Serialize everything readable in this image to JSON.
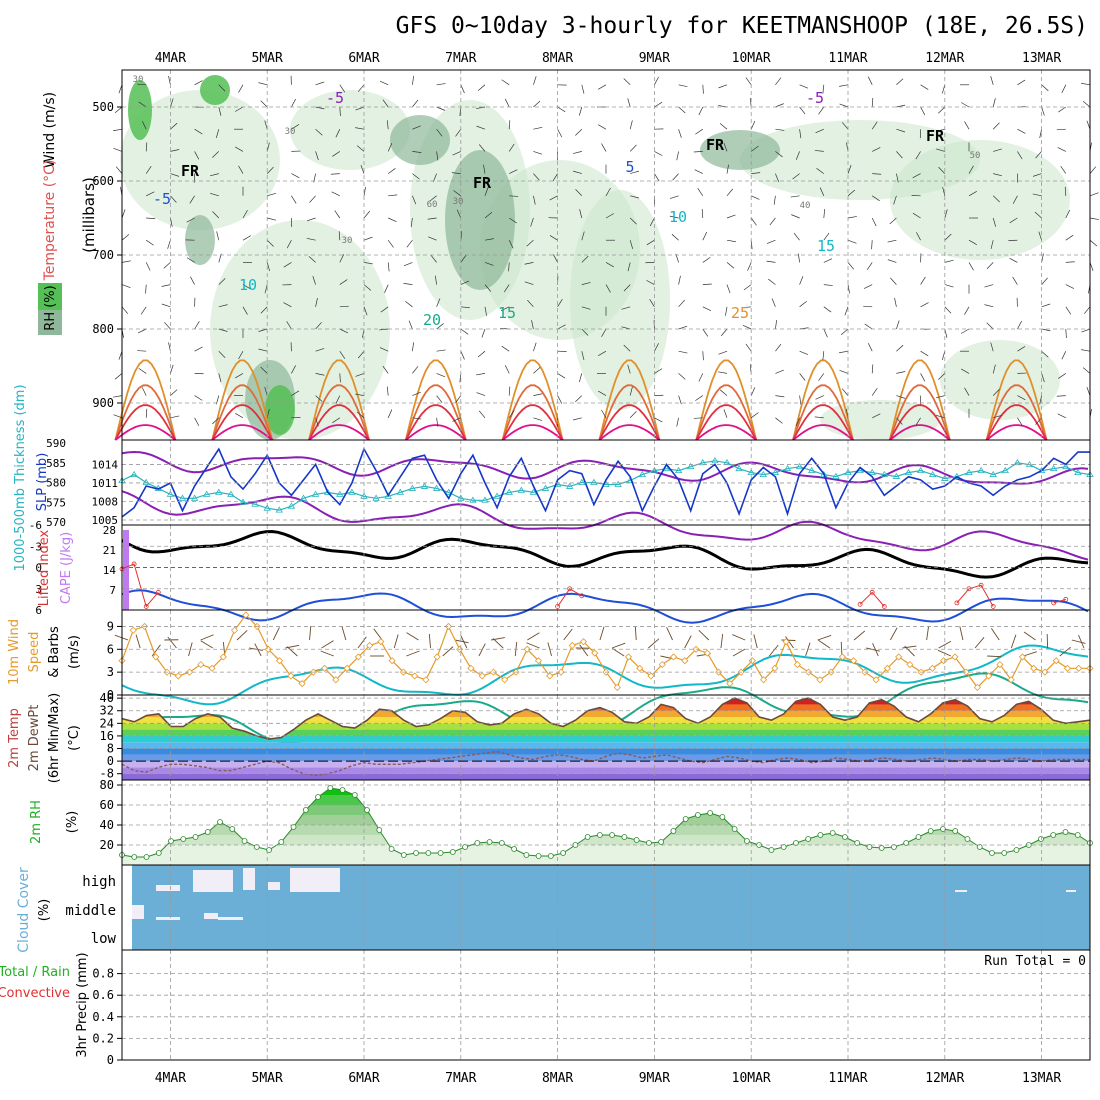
{
  "title": "GFS 0~10day 3-hourly for KEETMANSHOOP (18E, 26.5S)",
  "dates": [
    "4MAR",
    "5MAR",
    "6MAR",
    "7MAR",
    "8MAR",
    "9MAR",
    "10MAR",
    "11MAR",
    "12MAR",
    "13MAR"
  ],
  "colors": {
    "grid": "#9a9a9a",
    "purple": "#8a1fb6",
    "blue_dark": "#1f4fd6",
    "cyan": "#10b8c8",
    "teal": "#1aaa8a",
    "orange": "#e0902a",
    "red": "#e03040",
    "magenta": "#e0108a",
    "green_dark": "#2a8a2a",
    "cloud_blue": "#6baed6",
    "slp_blue": "#1537c8",
    "thick_cyan": "#28b4c0",
    "wind_orange": "#e69a2a",
    "barb_brown": "#6a4a2a",
    "cape_purple": "#c07af0",
    "li_red": "#e03030"
  },
  "chart_data": [
    {
      "panel": "upper-air",
      "type": "contour",
      "ylabel_wind": "Wind (m/s)",
      "ylabel_temp": "Temperature (°C)",
      "ylabel_rh": "RH (%)",
      "ylabel_units": "(millibars)",
      "yticks": [
        500,
        600,
        700,
        800,
        900
      ],
      "ylim": [
        450,
        950
      ],
      "contour_labels": [
        "-5",
        "-5",
        "FR",
        "FR",
        "FR",
        "FR",
        "5",
        "-5",
        "10",
        "10",
        "15",
        "15",
        "20",
        "25",
        "30",
        "30",
        "30",
        "30",
        "40",
        "50",
        "60"
      ]
    },
    {
      "panel": "slp-thickness",
      "type": "line",
      "ylabel_left": "1000-500mb Thickness (dm)",
      "ylabel_right": "SLP (mb)",
      "yticks_thick": [
        570,
        575,
        580,
        585,
        590
      ],
      "yticks_slp": [
        1005,
        1008,
        1011,
        1014
      ],
      "series": [
        {
          "name": "SLP",
          "values": [
            1005.5,
            1007.0,
            1010.5,
            1010.0,
            1011.0,
            1006.5,
            1010.5,
            1013.5,
            1016.5,
            1012.0,
            1010.0,
            1012.5,
            1015.5,
            1011.0,
            1009.0,
            1011.5,
            1014.0,
            1009.5,
            1007.5,
            1011.0,
            1016.5,
            1013.0,
            1009.0,
            1012.0,
            1015.0,
            1015.5,
            1011.5,
            1008.5,
            1012.5,
            1015.5,
            1011.0,
            1007.0,
            1012.0,
            1015.0,
            1010.5,
            1006.5,
            1011.5,
            1013.0,
            1012.5,
            1007.5,
            1011.5,
            1014.5,
            1012.0,
            1006.5,
            1010.5,
            1014.0,
            1011.5,
            1006.5,
            1012.5,
            1014.0,
            1011.0,
            1006.0,
            1011.5,
            1013.5,
            1012.0,
            1006.0,
            1012.5,
            1015.0,
            1012.5,
            1007.0,
            1011.0,
            1013.5,
            1012.0,
            1009.0,
            1010.5,
            1012.0,
            1011.5,
            1010.0,
            1010.5,
            1012.0,
            1011.0,
            1010.5,
            1009.0,
            1010.5,
            1011.5,
            1012.0,
            1013.0,
            1015.0,
            1014.0,
            1016.0,
            1016.0
          ]
        },
        {
          "name": "Thickness",
          "values": [
            580.5,
            582.0,
            580.0,
            578.5,
            577.0,
            576.0,
            576.0,
            577.0,
            577.5,
            577.0,
            575.0,
            574.5,
            573.5,
            573.0,
            574.0,
            576.0,
            577.0,
            577.5,
            577.0,
            577.5,
            576.5,
            576.0,
            576.5,
            577.5,
            578.5,
            579.0,
            578.5,
            577.5,
            576.0,
            575.5,
            575.5,
            576.5,
            577.5,
            578.0,
            577.5,
            578.5,
            579.5,
            579.0,
            580.0,
            580.0,
            579.5,
            579.5,
            580.5,
            582.0,
            583.0,
            583.5,
            583.0,
            584.0,
            585.0,
            585.5,
            585.0,
            583.5,
            582.5,
            582.0,
            582.5,
            583.5,
            584.0,
            583.0,
            582.0,
            581.5,
            582.5,
            583.0,
            582.5,
            582.0,
            581.5,
            582.5,
            583.0,
            582.0,
            581.0,
            581.5,
            582.5,
            583.0,
            582.0,
            583.0,
            585.0,
            584.5,
            583.0,
            583.5,
            584.0,
            582.5,
            582.0
          ]
        }
      ]
    },
    {
      "panel": "cape-li",
      "type": "bar+line",
      "ylabel_left": "Lifted Index",
      "ylabel_right": "CAPE (J/kg)",
      "yticks_li": [
        -6,
        -3,
        0,
        3,
        6
      ],
      "yticks_cape": [
        7,
        14,
        21,
        28
      ],
      "cape": [
        {
          "t": 0,
          "value": 28
        }
      ],
      "li_segments": [
        {
          "t": [
            0,
            1,
            2,
            3
          ],
          "values": [
            0.2,
            -0.5,
            5.5,
            3.5
          ]
        },
        {
          "t": [
            36,
            37,
            38
          ],
          "values": [
            5.5,
            3.0,
            4.0
          ]
        },
        {
          "t": [
            61,
            62,
            63
          ],
          "values": [
            5.2,
            3.5,
            5.5
          ]
        },
        {
          "t": [
            69,
            70,
            71,
            72
          ],
          "values": [
            5.0,
            3.0,
            2.5,
            5.5
          ]
        },
        {
          "t": [
            77,
            78
          ],
          "values": [
            5.0,
            4.5
          ]
        },
        {
          "t": [
            83,
            84,
            85
          ],
          "values": [
            5.0,
            4.0,
            3.0
          ]
        }
      ]
    },
    {
      "panel": "wind10m",
      "type": "line+barbs",
      "ylabel": "10m Wind Speed & Barbs (m/s)",
      "yticks": [
        0,
        3,
        6,
        9
      ],
      "ylim": [
        0,
        10.5
      ],
      "values": [
        4.5,
        8.5,
        9.0,
        5.0,
        3.0,
        2.5,
        3.0,
        4.0,
        3.5,
        5.0,
        8.5,
        10.5,
        9.0,
        6.0,
        4.5,
        2.5,
        1.5,
        3.0,
        3.5,
        2.0,
        3.5,
        5.0,
        6.5,
        7.0,
        4.5,
        3.0,
        2.5,
        2.0,
        5.0,
        9.0,
        6.0,
        3.5,
        2.5,
        3.0,
        2.0,
        3.0,
        6.0,
        4.5,
        2.5,
        3.0,
        6.5,
        7.0,
        5.5,
        3.0,
        1.0,
        5.0,
        3.5,
        2.5,
        4.0,
        5.0,
        4.5,
        6.0,
        5.5,
        3.0,
        1.5,
        3.0,
        4.5,
        2.0,
        3.5,
        7.0,
        4.0,
        3.0,
        2.0,
        3.0,
        5.0,
        4.5,
        3.0,
        2.0,
        3.5,
        5.0,
        4.0,
        3.0,
        3.5,
        4.5,
        5.0,
        3.0,
        1.0,
        2.5,
        4.0,
        2.0,
        5.0,
        3.5,
        3.0,
        4.5,
        3.5,
        3.5,
        3.5
      ]
    },
    {
      "panel": "temp2m",
      "type": "area+line",
      "ylabel": "2m Temp 2m DewPt (6hr Min/Max) (°C)",
      "yticks": [
        -8,
        0,
        8,
        16,
        24,
        32,
        40
      ],
      "ylim": [
        -12,
        42
      ],
      "temp": [
        27,
        25,
        29,
        30,
        22,
        22,
        27,
        30,
        28,
        21,
        19,
        16,
        14,
        15,
        20,
        26,
        30,
        26,
        22,
        21,
        26,
        33,
        32,
        26,
        22,
        23,
        27,
        32,
        31,
        25,
        23,
        24,
        30,
        33,
        30,
        24,
        22,
        26,
        32,
        34,
        31,
        25,
        24,
        28,
        36,
        34,
        27,
        24,
        28,
        36,
        40,
        37,
        28,
        26,
        30,
        38,
        40,
        36,
        28,
        26,
        28,
        37,
        39,
        35,
        28,
        25,
        30,
        37,
        39,
        35,
        27,
        25,
        29,
        36,
        38,
        33,
        26,
        24,
        25,
        26
      ],
      "dewpt": [
        -2,
        -6,
        -7,
        -4,
        -2,
        -2,
        -3,
        -4,
        -6,
        -6,
        -4,
        -2,
        0,
        -1,
        -5,
        -8,
        -9,
        -8,
        -6,
        -3,
        -1,
        -2,
        -2,
        -2,
        -1,
        0,
        1,
        2,
        3,
        4,
        5,
        6,
        4,
        2,
        1,
        3,
        4,
        3,
        1,
        0,
        3,
        5,
        4,
        2,
        3,
        4,
        2,
        0,
        -1,
        1,
        3,
        2,
        0,
        -1,
        1,
        2,
        1,
        -1,
        0,
        2,
        1,
        0,
        1,
        2,
        1,
        0,
        1,
        2,
        1,
        0,
        1,
        1,
        0,
        1,
        2,
        1,
        0,
        1,
        1,
        1,
        1
      ]
    },
    {
      "panel": "rh2m",
      "type": "area+line",
      "ylabel": "2m RH (%)",
      "yticks": [
        20,
        40,
        60,
        80
      ],
      "ylim": [
        0,
        85
      ],
      "values": [
        10,
        8,
        8,
        12,
        24,
        26,
        28,
        33,
        43,
        36,
        24,
        18,
        15,
        23,
        38,
        55,
        68,
        77,
        75,
        70,
        55,
        35,
        16,
        10,
        12,
        12,
        12,
        13,
        18,
        22,
        23,
        22,
        16,
        10,
        9,
        9,
        12,
        20,
        28,
        30,
        30,
        28,
        25,
        22,
        23,
        34,
        46,
        50,
        52,
        48,
        36,
        24,
        20,
        15,
        18,
        22,
        26,
        30,
        32,
        28,
        22,
        18,
        17,
        18,
        22,
        28,
        34,
        36,
        34,
        26,
        18,
        12,
        12,
        15,
        20,
        26,
        30,
        33,
        30,
        22
      ]
    },
    {
      "panel": "cloud",
      "type": "heatmap",
      "ylabel": "Cloud Cover (%)",
      "rows": [
        "high",
        "middle",
        "low"
      ]
    },
    {
      "panel": "precip",
      "type": "bar",
      "ylabel": "3hr Precip (mm)",
      "ylabel_total_rain": "Total / Rain",
      "ylabel_convective": "Convective",
      "yticks": [
        0,
        0.2,
        0.4,
        0.6,
        0.8
      ],
      "ylim": [
        0,
        1.0
      ],
      "run_total_label": "Run Total = 0",
      "values": []
    }
  ]
}
